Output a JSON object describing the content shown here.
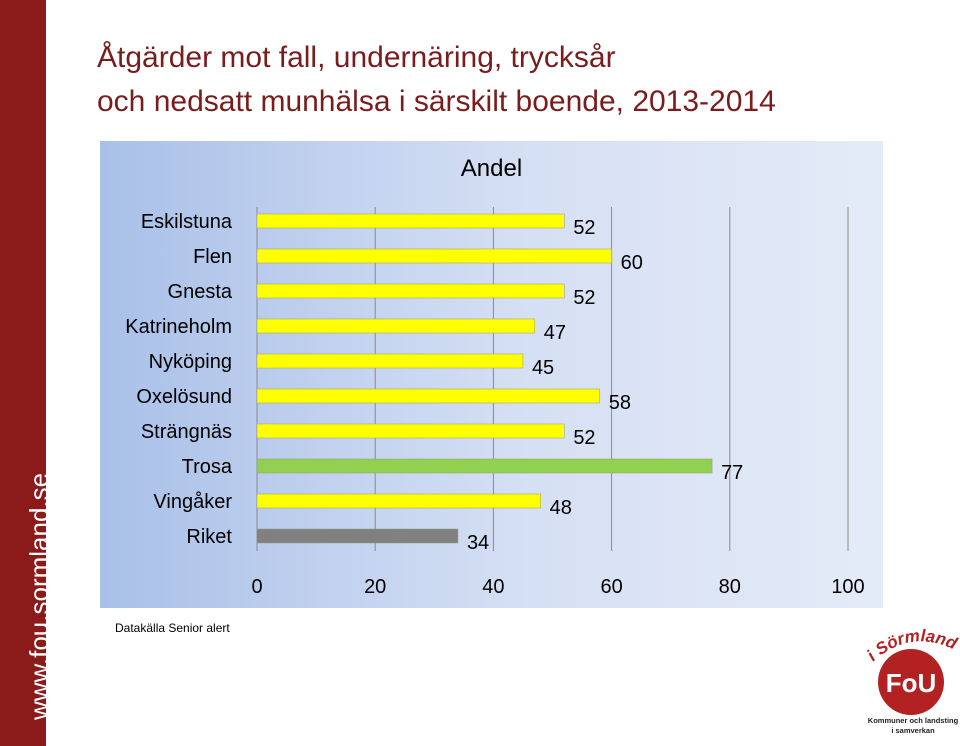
{
  "sidebar": {
    "url_text": "www.fou.sormland.se"
  },
  "title": {
    "line1": "Åtgärder mot fall, undernäring, trycksår",
    "line2": "och nedsatt munhälsa i särskilt boende, 2013-2014"
  },
  "source_note": "Datakälla Senior alert",
  "logo": {
    "top_text": "i Sörmland",
    "middle_text": "FoU",
    "bottom_line1": "Kommuner och landsting",
    "bottom_line2": "i samverkan"
  },
  "colors": {
    "sidebar": "#8b1a1a",
    "title": "#7a1c1c",
    "bar_default": "#ffff00",
    "bar_highlight": "#92d050",
    "bar_reference": "#808080",
    "logo_red": "#b22222"
  },
  "chart_data": {
    "type": "bar",
    "orientation": "horizontal",
    "title": "Andel",
    "categories": [
      "Eskilstuna",
      "Flen",
      "Gnesta",
      "Katrineholm",
      "Nyköping",
      "Oxelösund",
      "Strängnäs",
      "Trosa",
      "Vingåker",
      "Riket"
    ],
    "values": [
      52,
      60,
      52,
      47,
      45,
      58,
      52,
      77,
      48,
      34
    ],
    "bar_colors": [
      "#ffff00",
      "#ffff00",
      "#ffff00",
      "#ffff00",
      "#ffff00",
      "#ffff00",
      "#ffff00",
      "#92d050",
      "#ffff00",
      "#808080"
    ],
    "xlim": [
      0,
      100
    ],
    "xticks": [
      0,
      20,
      40,
      60,
      80,
      100
    ],
    "grid": "vertical",
    "data_labels": true
  }
}
